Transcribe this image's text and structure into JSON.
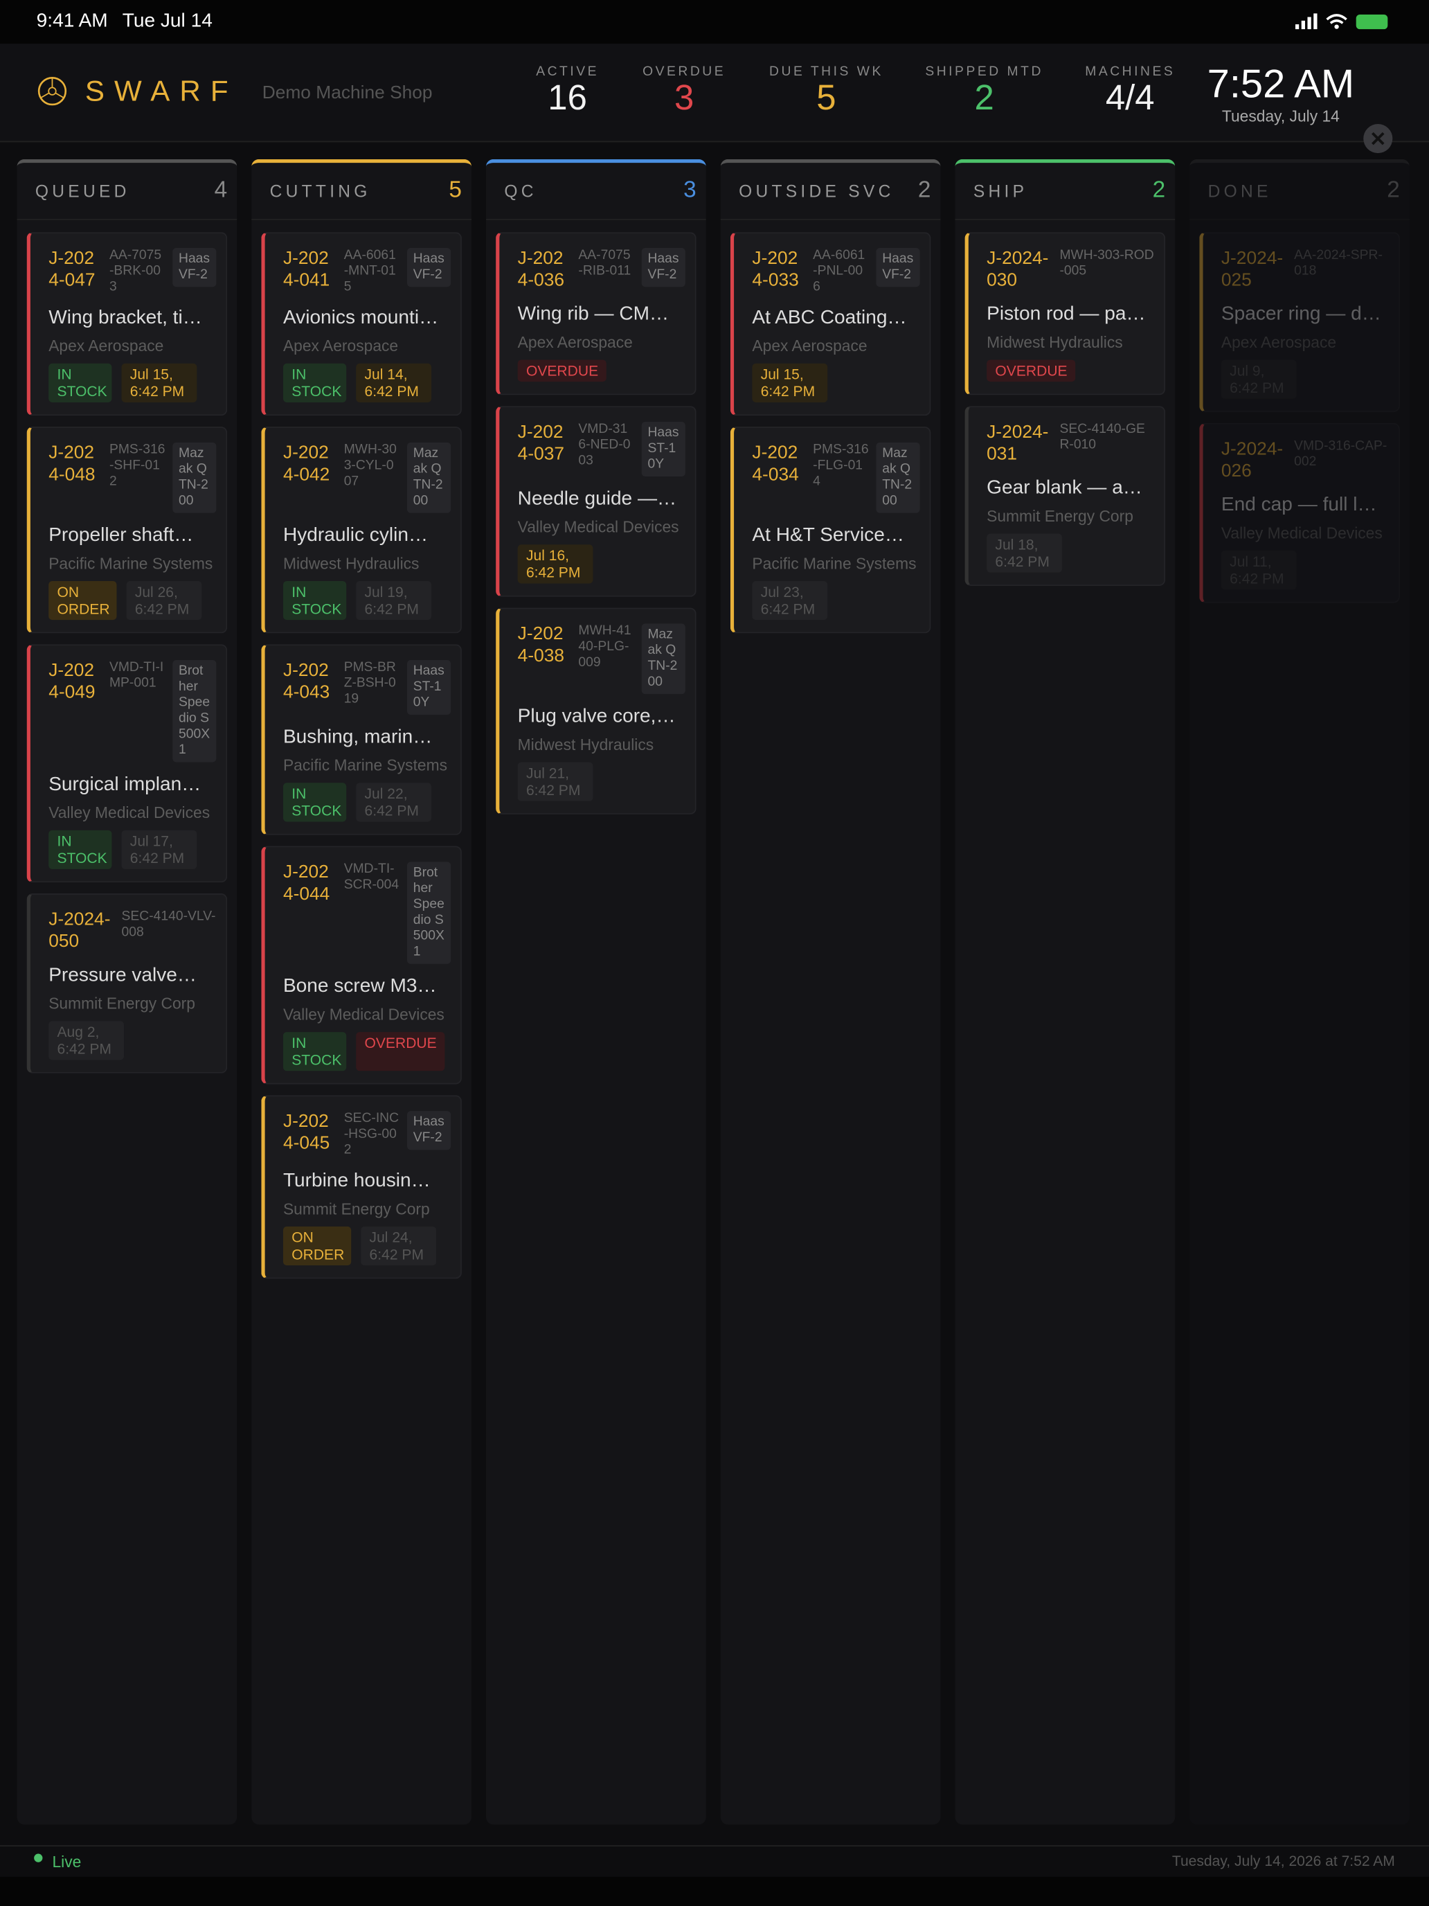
{
  "status_bar": {
    "time": "9:41 AM",
    "date": "Tue Jul 14"
  },
  "header": {
    "brand": "SWARF",
    "shop": "Demo Machine Shop",
    "clock": "7:52 AM",
    "clock_date": "Tuesday, July 14",
    "stats": [
      {
        "label": "ACTIVE",
        "value": 16,
        "color": "#f2f2f2"
      },
      {
        "label": "OVERDUE",
        "value": 3,
        "color": "#e0474c"
      },
      {
        "label": "DUE THIS WK",
        "value": 5,
        "color": "#e8b13a"
      },
      {
        "label": "SHIPPED MTD",
        "value": 2,
        "color": "#4cc06a"
      },
      {
        "label": "MACHINES",
        "value": "4/4",
        "color": "#f2f2f2"
      }
    ]
  },
  "columns": [
    {
      "title": "QUEUED",
      "count": 4,
      "color": "#555",
      "count_color": "#888",
      "cards": [
        {
          "id": "J-2024-047",
          "part": "AA-7075-BRK-003",
          "machine": "Haas VF-2",
          "title": "Wing bracket, ti…",
          "customer": "Apex Aerospace",
          "accent": "#d9434a",
          "tags": [
            {
              "text": "IN STOCK",
              "kind": "green"
            },
            {
              "text": "Jul 15, 6:42 PM",
              "kind": "yellow"
            }
          ]
        },
        {
          "id": "J-2024-048",
          "part": "PMS-316-SHF-012",
          "machine": "Mazak QTN-200",
          "title": "Propeller shaft…",
          "customer": "Pacific Marine Systems",
          "accent": "#e8b13a",
          "tags": [
            {
              "text": "ON ORDER",
              "kind": "orange"
            },
            {
              "text": "Jul 26, 6:42 PM",
              "kind": "grey"
            }
          ]
        },
        {
          "id": "J-2024-049",
          "part": "VMD-TI-IMP-001",
          "machine": "Brother Speedio S500X1",
          "title": "Surgical implan…",
          "customer": "Valley Medical Devices",
          "accent": "#d9434a",
          "tags": [
            {
              "text": "IN STOCK",
              "kind": "green"
            },
            {
              "text": "Jul 17, 6:42 PM",
              "kind": "grey"
            }
          ]
        },
        {
          "id": "J-2024-050",
          "part": "SEC-4140-VLV-008",
          "title": "Pressure valve…",
          "customer": "Summit Energy Corp",
          "accent": "#333",
          "tags": [
            {
              "text": "Aug 2, 6:42 PM",
              "kind": "grey"
            }
          ]
        }
      ]
    },
    {
      "title": "CUTTING",
      "count": 5,
      "color": "#e8b13a",
      "count_color": "#e8b13a",
      "cards": [
        {
          "id": "J-2024-041",
          "part": "AA-6061-MNT-015",
          "machine": "Haas VF-2",
          "title": "Avionics mounti…",
          "customer": "Apex Aerospace",
          "accent": "#d9434a",
          "tags": [
            {
              "text": "IN STOCK",
              "kind": "green"
            },
            {
              "text": "Jul 14, 6:42 PM",
              "kind": "yellow"
            }
          ]
        },
        {
          "id": "J-2024-042",
          "part": "MWH-303-CYL-007",
          "machine": "Mazak QTN-200",
          "title": "Hydraulic cylin…",
          "customer": "Midwest Hydraulics",
          "accent": "#e8b13a",
          "tags": [
            {
              "text": "IN STOCK",
              "kind": "green"
            },
            {
              "text": "Jul 19, 6:42 PM",
              "kind": "grey"
            }
          ]
        },
        {
          "id": "J-2024-043",
          "part": "PMS-BRZ-BSH-019",
          "machine": "Haas ST-10Y",
          "title": "Bushing, marin…",
          "customer": "Pacific Marine Systems",
          "accent": "#e8b13a",
          "tags": [
            {
              "text": "IN STOCK",
              "kind": "green"
            },
            {
              "text": "Jul 22, 6:42 PM",
              "kind": "grey"
            }
          ]
        },
        {
          "id": "J-2024-044",
          "part": "VMD-TI-SCR-004",
          "machine": "Brother Speedio S500X1",
          "title": "Bone screw M3…",
          "customer": "Valley Medical Devices",
          "accent": "#d9434a",
          "tags": [
            {
              "text": "IN STOCK",
              "kind": "green"
            },
            {
              "text": "OVERDUE",
              "kind": "red"
            }
          ]
        },
        {
          "id": "J-2024-045",
          "part": "SEC-INC-HSG-002",
          "machine": "Haas VF-2",
          "title": "Turbine housin…",
          "customer": "Summit Energy Corp",
          "accent": "#e8b13a",
          "tags": [
            {
              "text": "ON ORDER",
              "kind": "orange"
            },
            {
              "text": "Jul 24, 6:42 PM",
              "kind": "grey"
            }
          ]
        }
      ]
    },
    {
      "title": "QC",
      "count": 3,
      "color": "#4a8fe0",
      "count_color": "#4a8fe0",
      "cards": [
        {
          "id": "J-2024-036",
          "part": "AA-7075-RIB-011",
          "machine": "Haas VF-2",
          "title": "Wing rib — CM…",
          "customer": "Apex Aerospace",
          "accent": "#d9434a",
          "tags": [
            {
              "text": "OVERDUE",
              "kind": "red"
            }
          ]
        },
        {
          "id": "J-2024-037",
          "part": "VMD-316-NED-003",
          "machine": "Haas ST-10Y",
          "title": "Needle guide —…",
          "customer": "Valley Medical Devices",
          "accent": "#d9434a",
          "tags": [
            {
              "text": "Jul 16, 6:42 PM",
              "kind": "yellow"
            }
          ]
        },
        {
          "id": "J-2024-038",
          "part": "MWH-4140-PLG-009",
          "machine": "Mazak QTN-200",
          "title": "Plug valve core,…",
          "customer": "Midwest Hydraulics",
          "accent": "#e8b13a",
          "tags": [
            {
              "text": "Jul 21, 6:42 PM",
              "kind": "grey"
            }
          ]
        }
      ]
    },
    {
      "title": "OUTSIDE SVC",
      "count": 2,
      "color": "#555",
      "count_color": "#888",
      "cards": [
        {
          "id": "J-2024-033",
          "part": "AA-6061-PNL-006",
          "machine": "Haas VF-2",
          "title": "At ABC Coating…",
          "customer": "Apex Aerospace",
          "accent": "#d9434a",
          "tags": [
            {
              "text": "Jul 15, 6:42 PM",
              "kind": "yellow"
            }
          ]
        },
        {
          "id": "J-2024-034",
          "part": "PMS-316-FLG-014",
          "machine": "Mazak QTN-200",
          "title": "At H&T Service…",
          "customer": "Pacific Marine Systems",
          "accent": "#e8b13a",
          "tags": [
            {
              "text": "Jul 23, 6:42 PM",
              "kind": "grey"
            }
          ]
        }
      ]
    },
    {
      "title": "SHIP",
      "count": 2,
      "color": "#4cc06a",
      "count_color": "#4cc06a",
      "cards": [
        {
          "id": "J-2024-030",
          "part": "MWH-303-ROD-005",
          "title": "Piston rod — pa…",
          "customer": "Midwest Hydraulics",
          "accent": "#e8b13a",
          "tags": [
            {
              "text": "OVERDUE",
              "kind": "red"
            }
          ]
        },
        {
          "id": "J-2024-031",
          "part": "SEC-4140-GER-010",
          "title": "Gear blank — a…",
          "customer": "Summit Energy Corp",
          "accent": "#333",
          "tags": [
            {
              "text": "Jul 18, 6:42 PM",
              "kind": "grey"
            }
          ]
        }
      ]
    },
    {
      "title": "DONE",
      "count": 2,
      "color": "#333",
      "count_color": "#888",
      "faded": true,
      "cards": [
        {
          "id": "J-2024-025",
          "part": "AA-2024-SPR-018",
          "title": "Spacer ring — d…",
          "customer": "Apex Aerospace",
          "accent": "#e8b13a",
          "tags": [
            {
              "text": "Jul 9, 6:42 PM",
              "kind": "grey"
            }
          ]
        },
        {
          "id": "J-2024-026",
          "part": "VMD-316-CAP-002",
          "title": "End cap — full l…",
          "customer": "Valley Medical Devices",
          "accent": "#d9434a",
          "tags": [
            {
              "text": "Jul 11, 6:42 PM",
              "kind": "grey"
            }
          ]
        }
      ]
    }
  ],
  "footer": {
    "status": "Live",
    "timestamp": "Tuesday, July 14, 2026 at 7:52 AM"
  }
}
